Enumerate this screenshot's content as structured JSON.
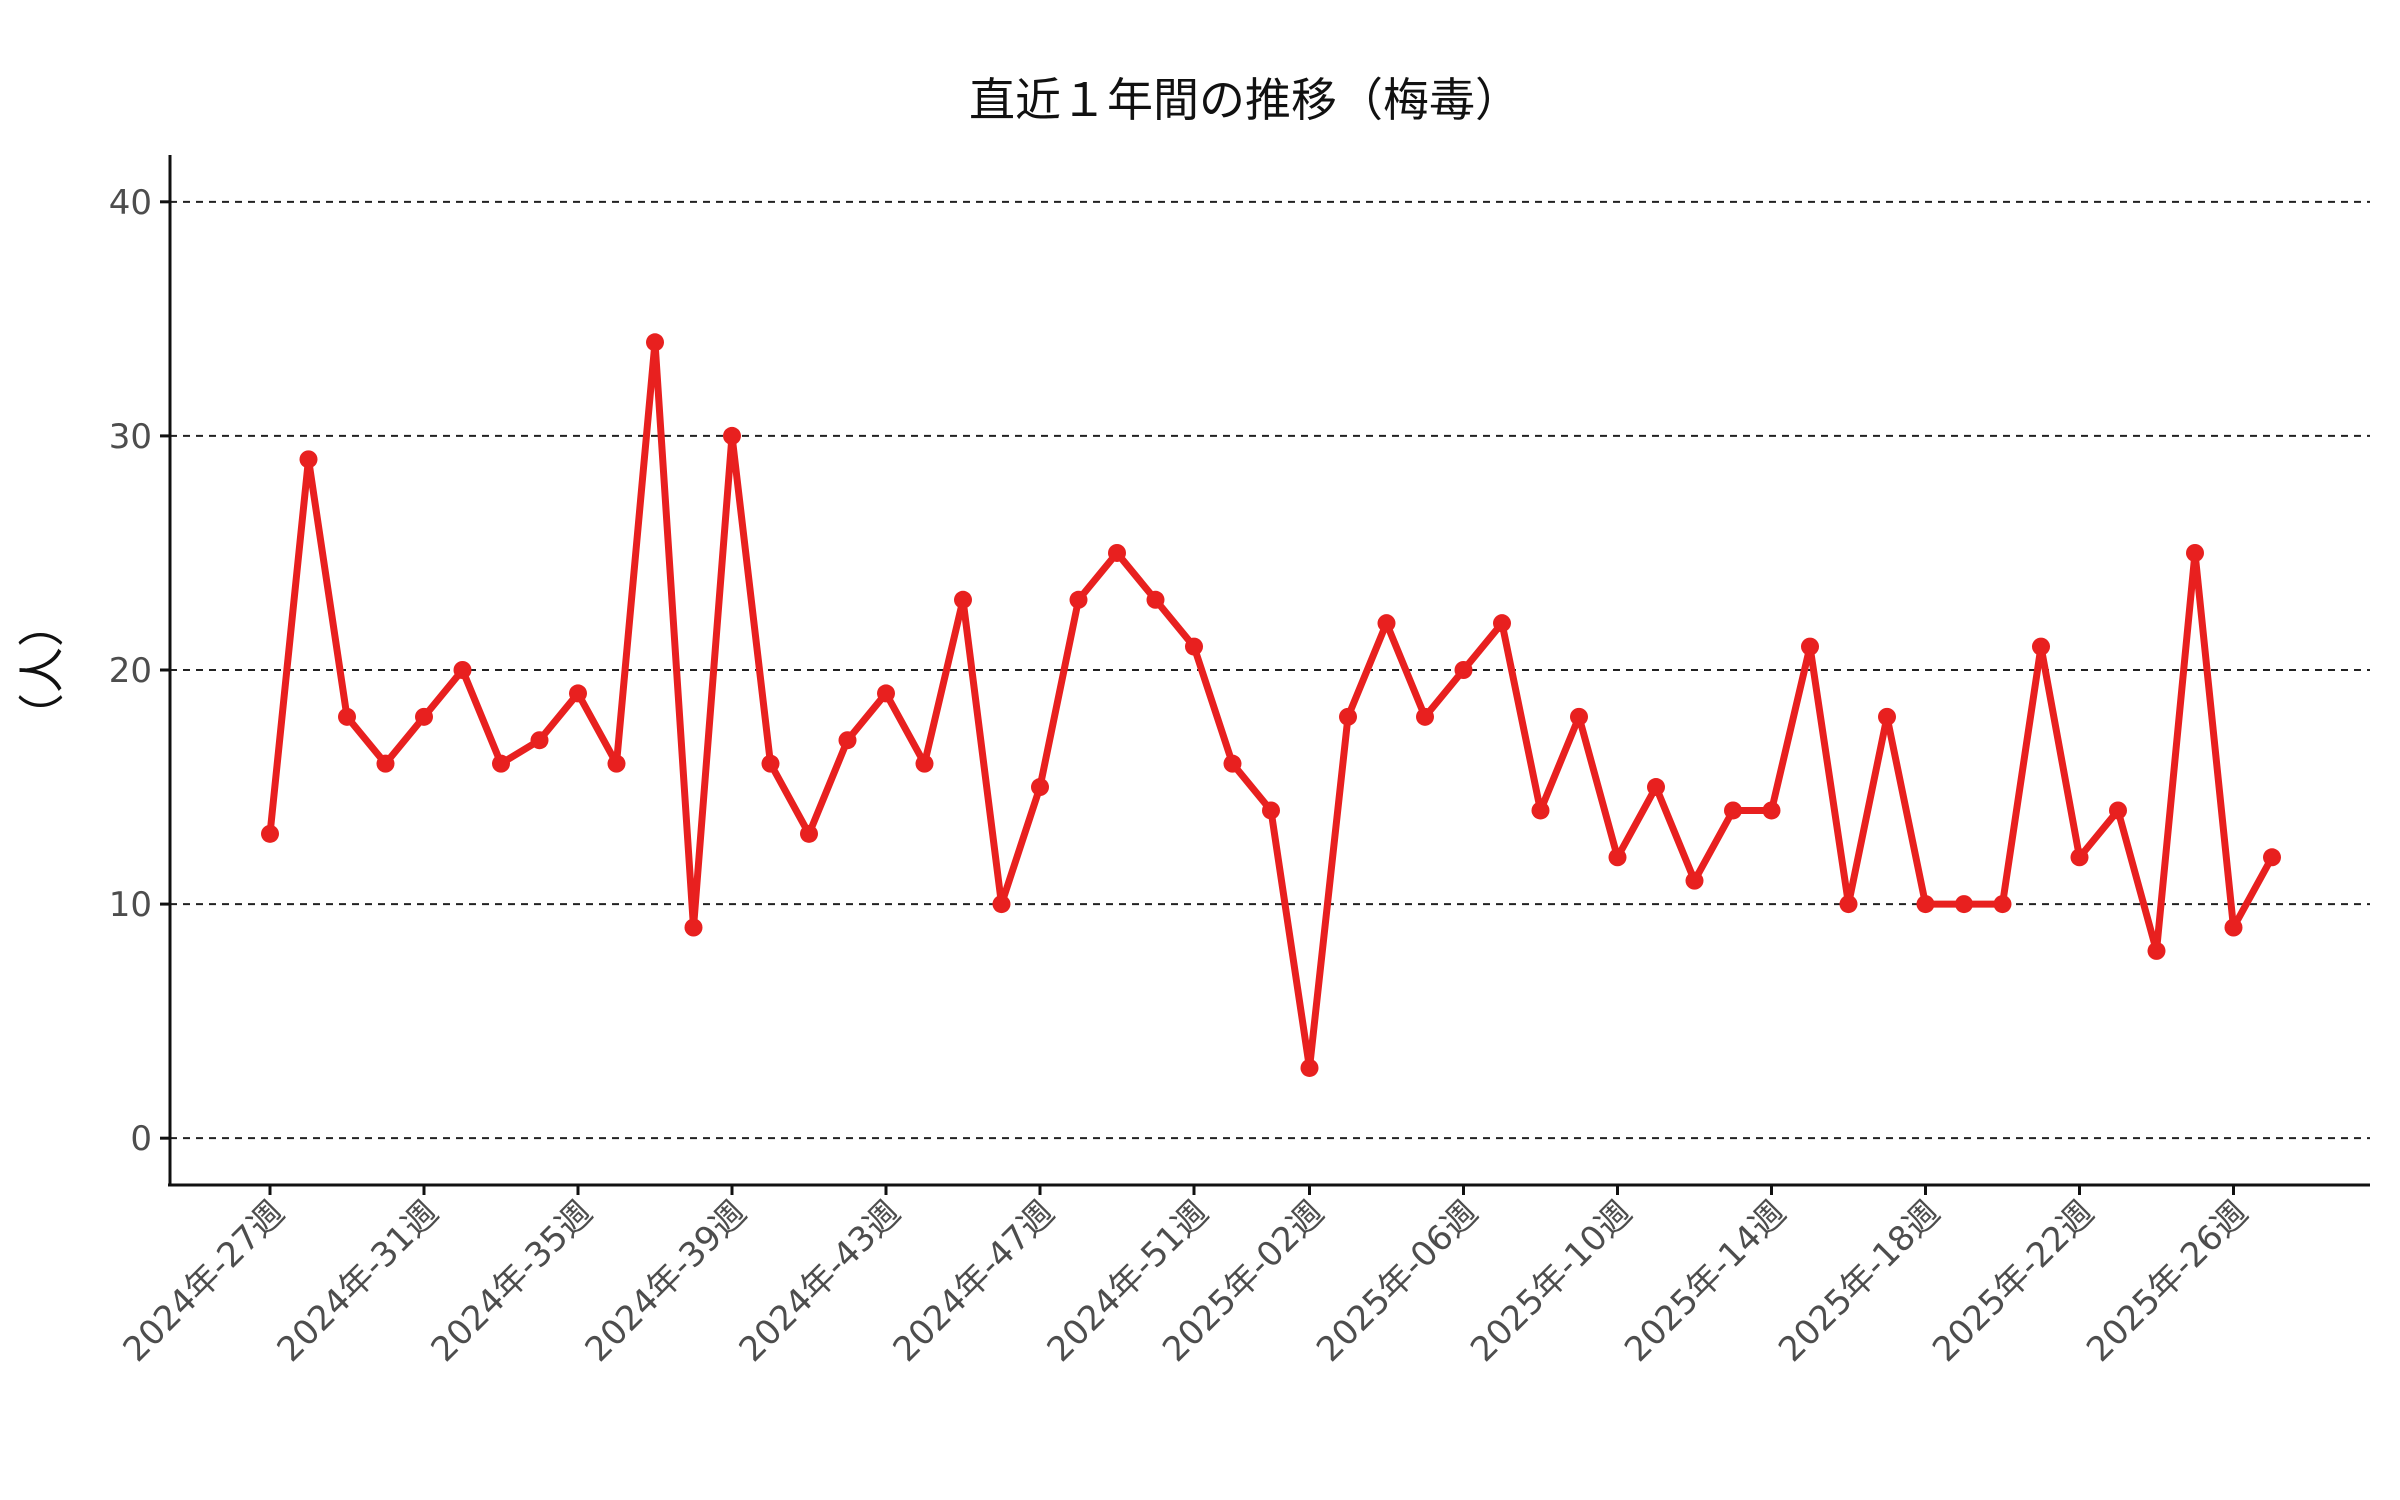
{
  "chart_data": {
    "type": "line",
    "title": "直近１年間の推移（梅毒）",
    "xlabel": "",
    "ylabel": "（人）",
    "ylim": [
      -2,
      42
    ],
    "yticks": [
      0,
      10,
      20,
      30,
      40
    ],
    "grid": "horizontal dashed",
    "line_color": "#e8201f",
    "x_tick_labels": [
      "2024年-27週",
      "2024年-31週",
      "2024年-35週",
      "2024年-39週",
      "2024年-43週",
      "2024年-47週",
      "2024年-51週",
      "2025年-02週",
      "2025年-06週",
      "2025年-10週",
      "2025年-14週",
      "2025年-18週",
      "2025年-22週",
      "2025年-26週"
    ],
    "x": [
      "2024年-27週",
      "2024年-28週",
      "2024年-29週",
      "2024年-30週",
      "2024年-31週",
      "2024年-32週",
      "2024年-33週",
      "2024年-34週",
      "2024年-35週",
      "2024年-36週",
      "2024年-37週",
      "2024年-38週",
      "2024年-39週",
      "2024年-40週",
      "2024年-41週",
      "2024年-42週",
      "2024年-43週",
      "2024年-44週",
      "2024年-45週",
      "2024年-46週",
      "2024年-47週",
      "2024年-48週",
      "2024年-49週",
      "2024年-50週",
      "2024年-51週",
      "2024年-52週",
      "2025年-01週",
      "2025年-02週",
      "2025年-03週",
      "2025年-04週",
      "2025年-05週",
      "2025年-06週",
      "2025年-07週",
      "2025年-08週",
      "2025年-09週",
      "2025年-10週",
      "2025年-11週",
      "2025年-12週",
      "2025年-13週",
      "2025年-14週",
      "2025年-15週",
      "2025年-16週",
      "2025年-17週",
      "2025年-18週",
      "2025年-19週",
      "2025年-20週",
      "2025年-21週",
      "2025年-22週",
      "2025年-23週",
      "2025年-24週",
      "2025年-25週",
      "2025年-26週",
      "2025年-27週"
    ],
    "values": [
      13,
      29,
      18,
      16,
      18,
      20,
      16,
      17,
      19,
      16,
      34,
      9,
      30,
      16,
      13,
      17,
      19,
      16,
      23,
      10,
      15,
      23,
      25,
      23,
      21,
      16,
      14,
      3,
      18,
      22,
      18,
      20,
      22,
      14,
      18,
      12,
      15,
      11,
      14,
      14,
      21,
      10,
      18,
      10,
      10,
      10,
      21,
      12,
      14,
      8,
      25,
      9,
      12
    ]
  }
}
